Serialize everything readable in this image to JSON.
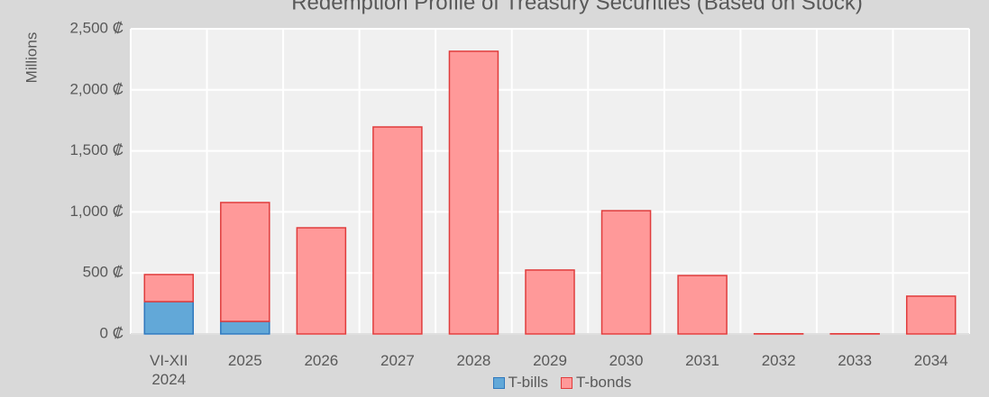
{
  "chart_data": {
    "type": "stacked_bar",
    "title": "Redemption Profile of Treasury Securities (Based on Stock)",
    "y_label": "Millions",
    "categories": [
      "VI-XII 2024",
      "2025",
      "2026",
      "2027",
      "2028",
      "2029",
      "2030",
      "2031",
      "2032",
      "2033",
      "2034"
    ],
    "series": [
      {
        "name": "T-bills",
        "color": "#62a8d8",
        "edge": "#2f78bd",
        "values": [
          265,
          103,
          0,
          0,
          0,
          0,
          0,
          0,
          0,
          0,
          0
        ]
      },
      {
        "name": "T-bonds",
        "color": "#ff9999",
        "edge": "#e03c3c",
        "values": [
          222,
          974,
          870,
          1696,
          2316,
          524,
          1010,
          479,
          2,
          2,
          310
        ]
      }
    ],
    "ylim": [
      0,
      2500
    ],
    "yticks": [
      {
        "value": 0,
        "label": "0 ₡"
      },
      {
        "value": 500,
        "label": "500 ₡"
      },
      {
        "value": 1000,
        "label": "1,000 ₡"
      },
      {
        "value": 1500,
        "label": "1,500 ₡"
      },
      {
        "value": 2000,
        "label": "2,000 ₡"
      },
      {
        "value": 2500,
        "label": "2,500 ₡"
      }
    ],
    "grid": true,
    "legend": "bottom"
  }
}
